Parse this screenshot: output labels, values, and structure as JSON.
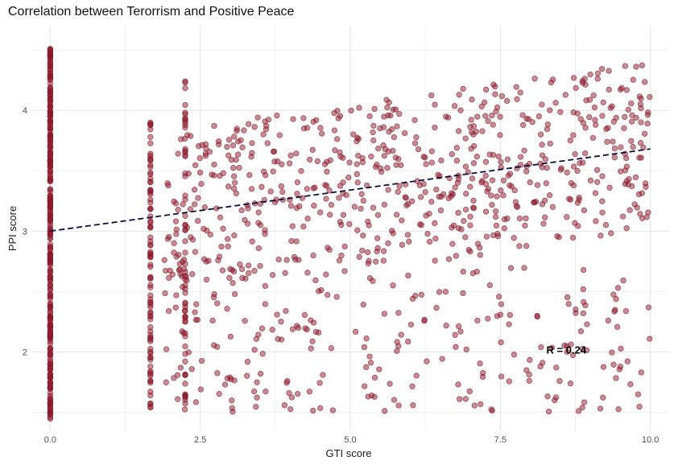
{
  "chart_data": {
    "type": "scatter",
    "title": "Correlation between Terorrism and Positive Peace",
    "xlabel": "GTI score",
    "ylabel": "PPI score",
    "xlim": [
      -0.3,
      10.3
    ],
    "ylim": [
      1.35,
      4.7
    ],
    "x_ticks": [
      0.0,
      2.5,
      5.0,
      7.5,
      10.0
    ],
    "x_tick_labels": [
      "0.0",
      "2.5",
      "5.0",
      "7.5",
      "10.0"
    ],
    "y_ticks": [
      2,
      3,
      4
    ],
    "y_tick_labels": [
      "2",
      "3",
      "4"
    ],
    "grid": true,
    "point_color": "#8b1a2b",
    "line_color": "#0a0f3c",
    "trend_line": {
      "style": "dashed",
      "x": [
        0.0,
        10.0
      ],
      "y": [
        3.0,
        3.68
      ]
    },
    "annotation": {
      "text": "R = 0.24",
      "x": 8.6,
      "y": 2.02
    },
    "point_count_estimate": 1800,
    "seed": 42
  }
}
